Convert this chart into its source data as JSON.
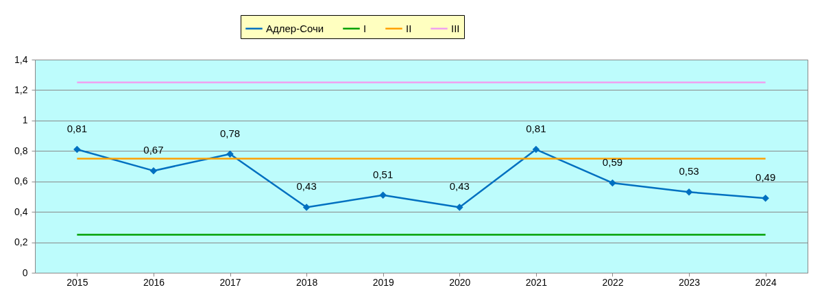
{
  "chart_data": {
    "type": "line",
    "categories": [
      "2015",
      "2016",
      "2017",
      "2018",
      "2019",
      "2020",
      "2021",
      "2022",
      "2023",
      "2024"
    ],
    "series": [
      {
        "name": "Адлер-Сочи",
        "color": "#0070c0",
        "marker": "diamond",
        "values": [
          0.81,
          0.67,
          0.78,
          0.43,
          0.51,
          0.43,
          0.81,
          0.59,
          0.53,
          0.49
        ],
        "value_labels": [
          "0,81",
          "0,67",
          "0,78",
          "0,43",
          "0,51",
          "0,43",
          "0,81",
          "0,59",
          "0,53",
          "0,49"
        ]
      },
      {
        "name": "I",
        "color": "#00a000",
        "marker": "none",
        "values": [
          0.25,
          0.25,
          0.25,
          0.25,
          0.25,
          0.25,
          0.25,
          0.25,
          0.25,
          0.25
        ]
      },
      {
        "name": "II",
        "color": "#ffa000",
        "marker": "none",
        "values": [
          0.75,
          0.75,
          0.75,
          0.75,
          0.75,
          0.75,
          0.75,
          0.75,
          0.75,
          0.75
        ]
      },
      {
        "name": "III",
        "color": "#f0a0f0",
        "marker": "none",
        "values": [
          1.25,
          1.25,
          1.25,
          1.25,
          1.25,
          1.25,
          1.25,
          1.25,
          1.25,
          1.25
        ]
      }
    ],
    "ylim": [
      0,
      1.4
    ],
    "yticks": [
      0,
      {
        "value": 0.2,
        "label": "0,2"
      },
      {
        "value": 0.4,
        "label": "0,4"
      },
      {
        "value": 0.6,
        "label": "0,6"
      },
      {
        "value": 0.8,
        "label": "0,8"
      },
      1,
      {
        "value": 1.2,
        "label": "1,2"
      },
      {
        "value": 1.4,
        "label": "1,4"
      }
    ],
    "grid": "y",
    "legend": "top",
    "line_style": "solid"
  }
}
